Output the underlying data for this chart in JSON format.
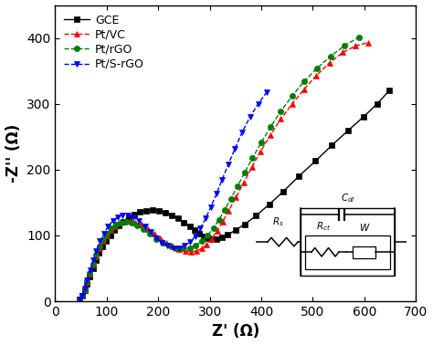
{
  "xlabel": "Z' (Ω)",
  "ylabel": "-Z'' (Ω)",
  "xlim": [
    0,
    700
  ],
  "ylim": [
    0,
    450
  ],
  "xticks": [
    0,
    100,
    200,
    300,
    400,
    500,
    600,
    700
  ],
  "yticks": [
    0,
    100,
    200,
    300,
    400
  ],
  "legend": [
    "GCE",
    "Pt/VC",
    "Pt/rGO",
    "Pt/S-rGO"
  ],
  "colors": [
    "black",
    "red",
    "green",
    "blue"
  ],
  "markers": [
    "s",
    "^",
    "o",
    "v"
  ],
  "linestyles": [
    "-",
    "--",
    "--",
    "--"
  ],
  "background": "#ffffff",
  "gce_x": [
    48,
    52,
    57,
    62,
    67,
    73,
    79,
    85,
    92,
    99,
    107,
    115,
    124,
    133,
    143,
    154,
    165,
    177,
    189,
    201,
    214,
    226,
    238,
    250,
    261,
    271,
    280,
    289,
    297,
    305,
    313,
    323,
    335,
    350,
    368,
    390,
    415,
    443,
    473,
    505,
    537,
    568,
    598,
    625,
    648
  ],
  "gce_y": [
    3,
    8,
    16,
    26,
    37,
    50,
    62,
    73,
    83,
    92,
    100,
    108,
    115,
    121,
    127,
    132,
    136,
    138,
    139,
    138,
    135,
    131,
    126,
    120,
    114,
    108,
    103,
    99,
    96,
    95,
    95,
    97,
    101,
    108,
    117,
    130,
    147,
    167,
    190,
    213,
    237,
    259,
    280,
    300,
    320
  ],
  "ptvc_x": [
    48,
    52,
    57,
    62,
    67,
    73,
    79,
    86,
    93,
    100,
    108,
    116,
    125,
    135,
    145,
    156,
    168,
    180,
    192,
    204,
    216,
    228,
    240,
    252,
    263,
    274,
    284,
    294,
    304,
    314,
    325,
    337,
    351,
    366,
    382,
    399,
    418,
    438,
    460,
    483,
    507,
    532,
    558,
    583,
    607
  ],
  "ptvc_y": [
    3,
    9,
    18,
    29,
    42,
    55,
    68,
    80,
    91,
    100,
    108,
    114,
    119,
    122,
    122,
    120,
    116,
    110,
    103,
    96,
    89,
    83,
    79,
    76,
    75,
    76,
    80,
    86,
    95,
    107,
    121,
    138,
    158,
    180,
    204,
    228,
    253,
    277,
    300,
    322,
    343,
    362,
    378,
    388,
    393
  ],
  "ptrgo_x": [
    48,
    52,
    57,
    62,
    67,
    73,
    79,
    86,
    93,
    101,
    109,
    118,
    127,
    137,
    148,
    159,
    171,
    183,
    196,
    209,
    222,
    235,
    248,
    261,
    273,
    285,
    296,
    307,
    318,
    329,
    341,
    354,
    368,
    383,
    400,
    418,
    438,
    460,
    483,
    508,
    534,
    561,
    589
  ],
  "ptrgo_y": [
    3,
    9,
    18,
    30,
    43,
    57,
    71,
    83,
    94,
    103,
    111,
    117,
    120,
    121,
    119,
    115,
    109,
    102,
    95,
    89,
    84,
    81,
    80,
    81,
    85,
    91,
    100,
    111,
    124,
    139,
    156,
    175,
    196,
    218,
    241,
    265,
    289,
    312,
    334,
    354,
    372,
    388,
    401
  ],
  "ptsrgo_x": [
    48,
    52,
    57,
    62,
    68,
    74,
    80,
    87,
    95,
    103,
    112,
    121,
    131,
    141,
    152,
    163,
    174,
    185,
    196,
    207,
    218,
    229,
    240,
    251,
    262,
    272,
    282,
    292,
    302,
    313,
    324,
    336,
    349,
    363,
    378,
    394,
    411
  ],
  "ptsrgo_y": [
    3,
    9,
    19,
    32,
    47,
    62,
    77,
    91,
    103,
    114,
    122,
    128,
    131,
    131,
    128,
    122,
    114,
    105,
    96,
    89,
    84,
    81,
    81,
    84,
    90,
    99,
    111,
    126,
    143,
    163,
    185,
    208,
    232,
    257,
    280,
    300,
    318
  ]
}
